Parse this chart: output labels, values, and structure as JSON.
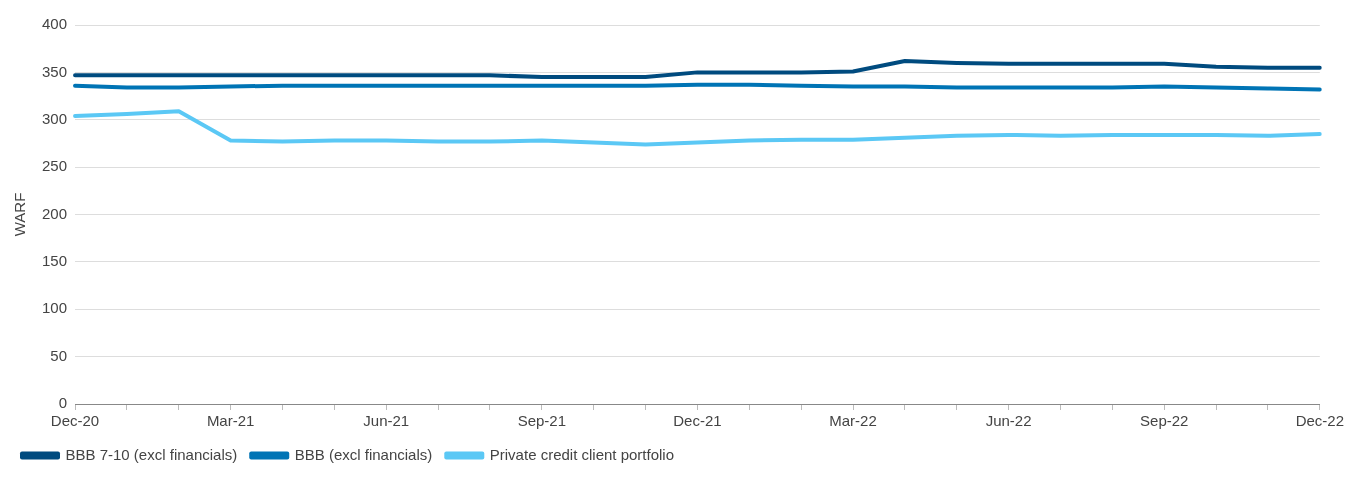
{
  "chart_data": {
    "type": "line",
    "ylabel": "WARF",
    "categories": [
      "Dec-20",
      null,
      null,
      "Mar-21",
      null,
      null,
      "Jun-21",
      null,
      null,
      "Sep-21",
      null,
      null,
      "Dec-21",
      null,
      null,
      "Mar-22",
      null,
      null,
      "Jun-22",
      null,
      null,
      "Sep-22",
      null,
      null,
      "Dec-22"
    ],
    "series": [
      {
        "name": "BBB 7-10 (excl financials)",
        "color": "#004b7f",
        "values": [
          347,
          347,
          347,
          347,
          347,
          347,
          347,
          347,
          347,
          345,
          345,
          345,
          350,
          350,
          350,
          351,
          362,
          360,
          359,
          359,
          359,
          359,
          356,
          355,
          355
        ]
      },
      {
        "name": "BBB (excl financials)",
        "color": "#0074b5",
        "values": [
          336,
          334,
          334,
          335,
          336,
          336,
          336,
          336,
          336,
          336,
          336,
          336,
          337,
          337,
          336,
          335,
          335,
          334,
          334,
          334,
          334,
          335,
          334,
          333,
          332
        ]
      },
      {
        "name": "Private credit client portfolio",
        "color": "#5bc8f5",
        "values": [
          304,
          306,
          309,
          278,
          277,
          278,
          278,
          277,
          277,
          278,
          276,
          274,
          276,
          278,
          279,
          279,
          281,
          283,
          284,
          283,
          284,
          284,
          284,
          283,
          285
        ]
      }
    ],
    "ylim": [
      0,
      400
    ],
    "yticks": [
      0,
      50,
      100,
      150,
      200,
      250,
      300,
      350,
      400
    ],
    "grid": "y",
    "legend": "bottom left",
    "marker": "none",
    "line_style": "solid"
  }
}
